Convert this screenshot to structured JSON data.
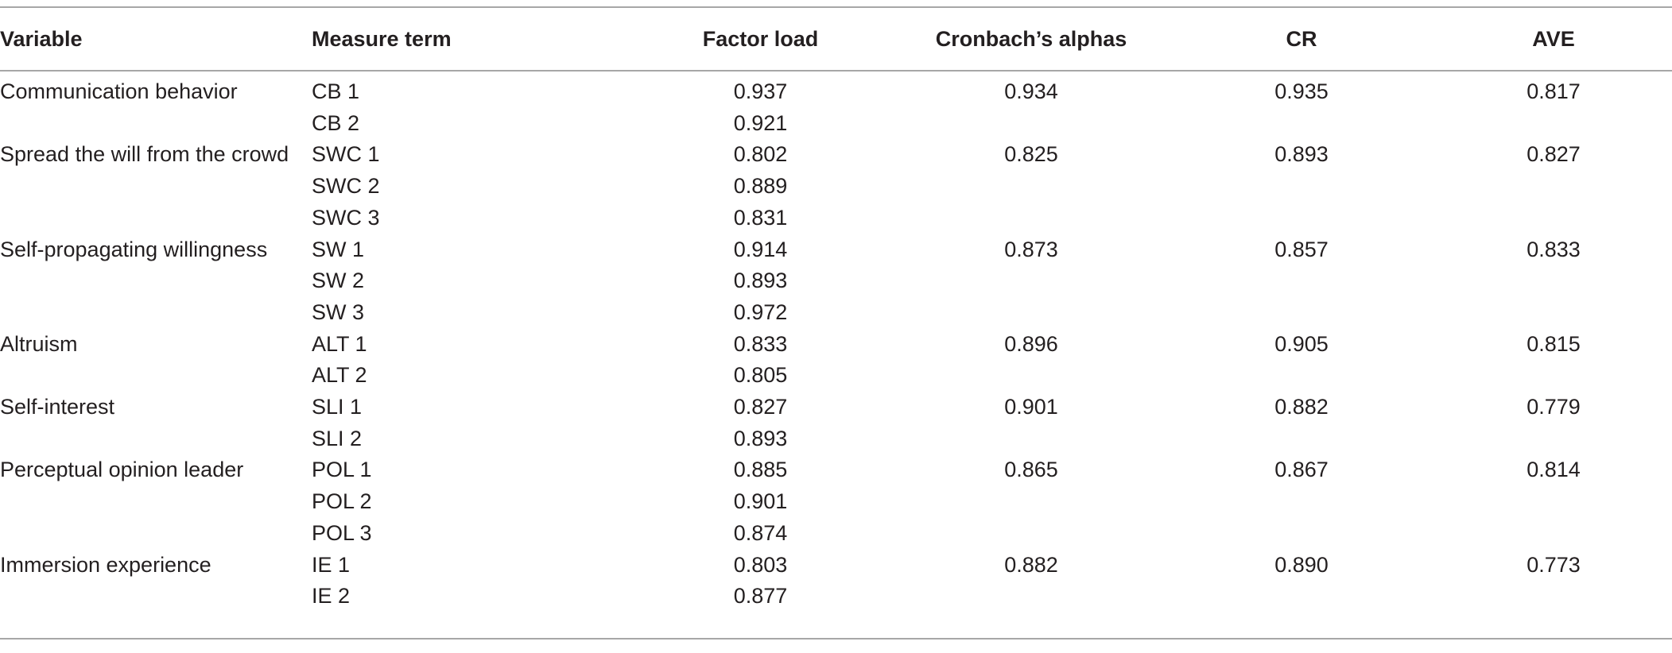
{
  "table": {
    "headers": [
      "Variable",
      "Measure term",
      "Factor load",
      "Cronbach’s alphas",
      "CR",
      "AVE"
    ],
    "groups": [
      {
        "variable": "Communication behavior",
        "cronbach": "0.934",
        "cr": "0.935",
        "ave": "0.817",
        "items": [
          {
            "term": "CB 1",
            "load": "0.937"
          },
          {
            "term": "CB 2",
            "load": "0.921"
          }
        ]
      },
      {
        "variable": "Spread the will from the crowd",
        "cronbach": "0.825",
        "cr": "0.893",
        "ave": "0.827",
        "items": [
          {
            "term": "SWC 1",
            "load": "0.802"
          },
          {
            "term": "SWC 2",
            "load": "0.889"
          },
          {
            "term": "SWC 3",
            "load": "0.831"
          }
        ]
      },
      {
        "variable": "Self-propagating willingness",
        "cronbach": "0.873",
        "cr": "0.857",
        "ave": "0.833",
        "items": [
          {
            "term": "SW 1",
            "load": "0.914"
          },
          {
            "term": "SW 2",
            "load": "0.893"
          },
          {
            "term": "SW 3",
            "load": "0.972"
          }
        ]
      },
      {
        "variable": "Altruism",
        "cronbach": "0.896",
        "cr": "0.905",
        "ave": "0.815",
        "items": [
          {
            "term": "ALT 1",
            "load": "0.833"
          },
          {
            "term": "ALT 2",
            "load": "0.805"
          }
        ]
      },
      {
        "variable": "Self-interest",
        "cronbach": "0.901",
        "cr": "0.882",
        "ave": "0.779",
        "items": [
          {
            "term": "SLI 1",
            "load": "0.827"
          },
          {
            "term": "SLI 2",
            "load": "0.893"
          }
        ]
      },
      {
        "variable": "Perceptual opinion leader",
        "cronbach": "0.865",
        "cr": "0.867",
        "ave": "0.814",
        "items": [
          {
            "term": "POL 1",
            "load": "0.885"
          },
          {
            "term": "POL 2",
            "load": "0.901"
          },
          {
            "term": "POL 3",
            "load": "0.874"
          }
        ]
      },
      {
        "variable": "Immersion experience",
        "cronbach": "0.882",
        "cr": "0.890",
        "ave": "0.773",
        "items": [
          {
            "term": "IE 1",
            "load": "0.803"
          },
          {
            "term": "IE 2",
            "load": "0.877"
          }
        ]
      }
    ]
  }
}
